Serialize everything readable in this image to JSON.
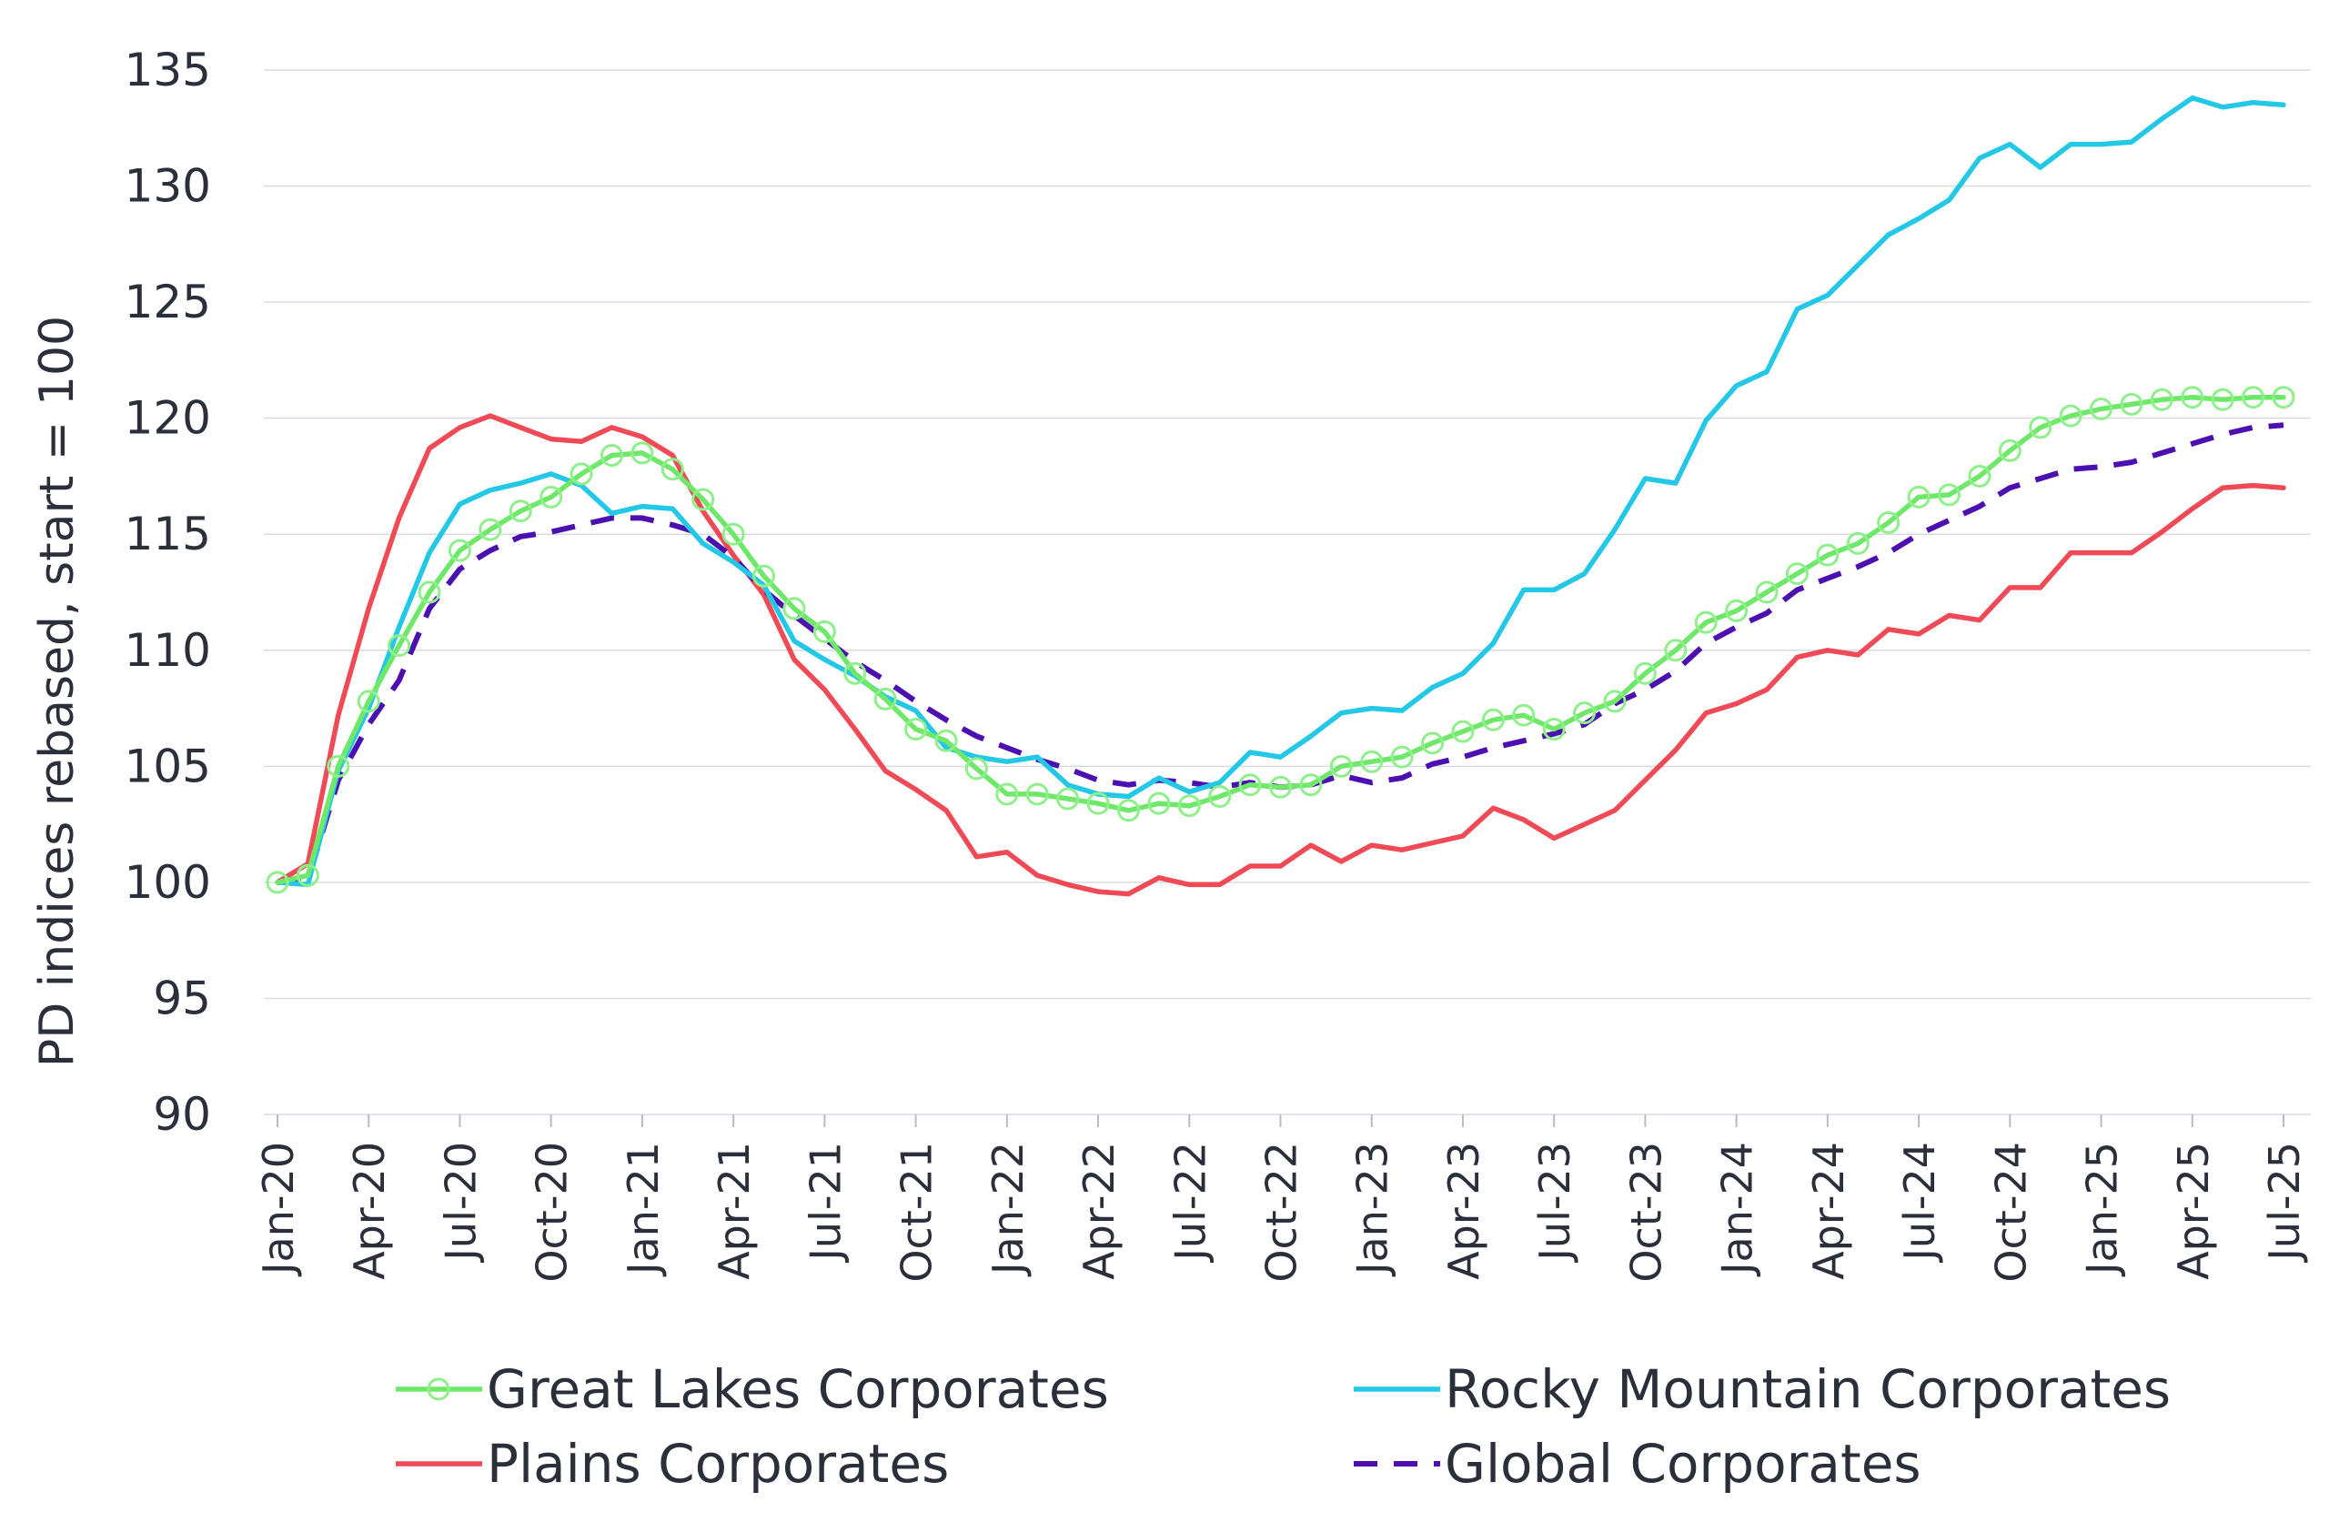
{
  "chart_data": {
    "type": "line",
    "title": "",
    "xlabel": "",
    "ylabel": "PD indices rebased, start = 100",
    "ylim": [
      90,
      135
    ],
    "yticks": [
      90,
      95,
      100,
      105,
      110,
      115,
      120,
      125,
      130,
      135
    ],
    "grid": true,
    "legend_position": "bottom",
    "x": [
      "Jan-20",
      "Feb-20",
      "Mar-20",
      "Apr-20",
      "May-20",
      "Jun-20",
      "Jul-20",
      "Aug-20",
      "Sep-20",
      "Oct-20",
      "Nov-20",
      "Dec-20",
      "Jan-21",
      "Feb-21",
      "Mar-21",
      "Apr-21",
      "May-21",
      "Jun-21",
      "Jul-21",
      "Aug-21",
      "Sep-21",
      "Oct-21",
      "Nov-21",
      "Dec-21",
      "Jan-22",
      "Feb-22",
      "Mar-22",
      "Apr-22",
      "May-22",
      "Jun-22",
      "Jul-22",
      "Aug-22",
      "Sep-22",
      "Oct-22",
      "Nov-22",
      "Dec-22",
      "Jan-23",
      "Feb-23",
      "Mar-23",
      "Apr-23",
      "May-23",
      "Jun-23",
      "Jul-23",
      "Aug-23",
      "Sep-23",
      "Oct-23",
      "Nov-23",
      "Dec-23",
      "Jan-24",
      "Feb-24",
      "Mar-24",
      "Apr-24",
      "May-24",
      "Jun-24",
      "Jul-24",
      "Aug-24",
      "Sep-24",
      "Oct-24",
      "Nov-24",
      "Dec-24",
      "Jan-25",
      "Feb-25",
      "Mar-25",
      "Apr-25",
      "May-25",
      "Jun-25",
      "Jul-25"
    ],
    "xtick_labels": [
      "Jan-20",
      "Apr-20",
      "Jul-20",
      "Oct-20",
      "Jan-21",
      "Apr-21",
      "Jul-21",
      "Oct-21",
      "Jan-22",
      "Apr-22",
      "Jul-22",
      "Oct-22",
      "Jan-23",
      "Apr-23",
      "Jul-23",
      "Oct-23",
      "Jan-24",
      "Apr-24",
      "Jul-24",
      "Oct-24",
      "Jan-25",
      "Apr-25",
      "Jul-25"
    ],
    "series": [
      {
        "name": "Great Lakes Corporates",
        "color": "#6fe86a",
        "style": "solid-markers",
        "values": [
          100,
          100.3,
          105,
          107.8,
          110.2,
          112.5,
          114.3,
          115.2,
          116.0,
          116.6,
          117.6,
          118.4,
          118.5,
          117.8,
          116.5,
          115.0,
          113.2,
          111.8,
          110.8,
          109.0,
          107.9,
          106.6,
          106.1,
          104.9,
          103.8,
          103.8,
          103.6,
          103.4,
          103.1,
          103.4,
          103.3,
          103.7,
          104.2,
          104.1,
          104.2,
          105.0,
          105.2,
          105.4,
          106.0,
          106.5,
          107.0,
          107.2,
          106.6,
          107.3,
          107.8,
          109.0,
          110.0,
          111.2,
          111.7,
          112.5,
          113.3,
          114.1,
          114.6,
          115.5,
          116.6,
          116.7,
          117.5,
          118.6,
          119.6,
          120.1,
          120.4,
          120.6,
          120.8,
          120.9,
          120.8,
          120.9,
          120.9
        ]
      },
      {
        "name": "Rocky Mountain Corporates",
        "color": "#22c8e6",
        "style": "solid",
        "values": [
          100,
          99.9,
          104.8,
          107.5,
          111.0,
          114.2,
          116.3,
          116.9,
          117.2,
          117.6,
          117.1,
          115.9,
          116.2,
          116.1,
          114.6,
          113.8,
          112.8,
          110.4,
          109.6,
          108.9,
          108.0,
          107.4,
          105.8,
          105.4,
          105.2,
          105.4,
          104.2,
          103.8,
          103.7,
          104.5,
          103.9,
          104.3,
          105.6,
          105.4,
          106.3,
          107.3,
          107.5,
          107.4,
          108.4,
          109.0,
          110.3,
          112.6,
          112.6,
          113.3,
          115.2,
          117.4,
          117.2,
          119.9,
          121.4,
          122.0,
          124.7,
          125.3,
          126.6,
          127.9,
          128.6,
          129.4,
          131.2,
          131.8,
          130.8,
          131.8,
          131.8,
          131.9,
          132.9,
          133.8,
          133.4,
          133.6,
          133.5
        ]
      },
      {
        "name": "Plains Corporates",
        "color": "#ef4a56",
        "style": "solid",
        "values": [
          100,
          100.8,
          107.2,
          111.8,
          115.7,
          118.7,
          119.6,
          120.1,
          119.6,
          119.1,
          119.0,
          119.6,
          119.2,
          118.4,
          116.0,
          114.1,
          112.4,
          109.6,
          108.3,
          106.6,
          104.8,
          104.0,
          103.1,
          101.1,
          101.3,
          100.3,
          99.9,
          99.6,
          99.5,
          100.2,
          99.9,
          99.9,
          100.7,
          100.7,
          101.6,
          100.9,
          101.6,
          101.4,
          101.7,
          102.0,
          103.2,
          102.7,
          101.9,
          102.5,
          103.1,
          104.4,
          105.7,
          107.3,
          107.7,
          108.3,
          109.7,
          110.0,
          109.8,
          110.9,
          110.7,
          111.5,
          111.3,
          112.7,
          112.7,
          114.2,
          114.2,
          114.2,
          115.1,
          116.1,
          117.0,
          117.1,
          117.0
        ]
      },
      {
        "name": "Global Corporates",
        "color": "#4c10b0",
        "style": "dashed",
        "values": [
          100,
          100.1,
          104.4,
          106.8,
          108.7,
          111.8,
          113.5,
          114.3,
          114.9,
          115.1,
          115.4,
          115.7,
          115.7,
          115.4,
          115.0,
          114.0,
          112.6,
          111.5,
          110.5,
          109.5,
          108.7,
          107.8,
          107.0,
          106.3,
          105.8,
          105.3,
          104.9,
          104.4,
          104.2,
          104.4,
          104.3,
          104.1,
          104.3,
          104.1,
          104.2,
          104.6,
          104.3,
          104.5,
          105.1,
          105.4,
          105.8,
          106.1,
          106.4,
          106.8,
          107.7,
          108.3,
          109.1,
          110.3,
          111.0,
          111.6,
          112.6,
          113.1,
          113.6,
          114.2,
          115.0,
          115.6,
          116.2,
          117.0,
          117.4,
          117.8,
          117.9,
          118.1,
          118.5,
          118.9,
          119.3,
          119.6,
          119.7
        ]
      }
    ]
  }
}
